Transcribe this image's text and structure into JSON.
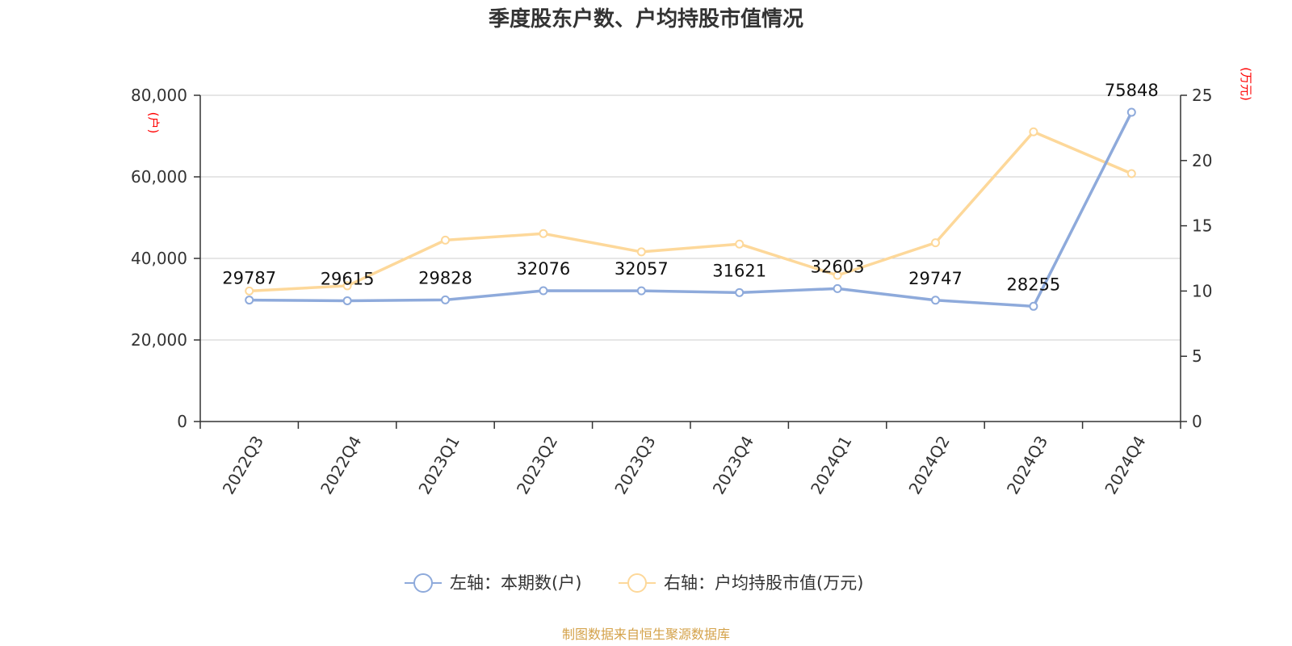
{
  "chart_data": {
    "type": "line",
    "title": "季度股东户数、户均持股市值情况",
    "categories": [
      "2022Q3",
      "2022Q4",
      "2023Q1",
      "2023Q2",
      "2023Q3",
      "2023Q4",
      "2024Q1",
      "2024Q2",
      "2024Q3",
      "2024Q4"
    ],
    "series": [
      {
        "name": "左轴：本期数(户)",
        "axis": "left",
        "color": "#8eaadb",
        "values": [
          29787,
          29615,
          29828,
          32076,
          32057,
          31621,
          32603,
          29747,
          28255,
          75848
        ],
        "data_labels": [
          "29787",
          "29615",
          "29828",
          "32076",
          "32057",
          "31621",
          "32603",
          "29747",
          "28255",
          "75848"
        ]
      },
      {
        "name": "右轴：户均持股市值(万元)",
        "axis": "right",
        "color": "#fdd89a",
        "values": [
          10.0,
          10.4,
          13.9,
          14.4,
          13.0,
          13.6,
          11.2,
          13.7,
          22.2,
          19.0
        ]
      }
    ],
    "left_axis": {
      "unit": "(户)",
      "ylim": [
        0,
        80000
      ],
      "ticks": [
        0,
        20000,
        40000,
        60000,
        80000
      ],
      "tick_labels": [
        "0",
        "20,000",
        "40,000",
        "60,000",
        "80,000"
      ]
    },
    "right_axis": {
      "unit": "(万元)",
      "ylim": [
        0,
        25
      ],
      "ticks": [
        0,
        5,
        10,
        15,
        20,
        25
      ],
      "tick_labels": [
        "0",
        "5",
        "10",
        "15",
        "20",
        "25"
      ]
    },
    "grid": true,
    "legend_position": "bottom-center",
    "colors": {
      "grid": "#cccccc",
      "axis": "#333333",
      "unit": "#ff0000",
      "source": "#d4a24a"
    }
  },
  "source_text": "制图数据来自恒生聚源数据库"
}
